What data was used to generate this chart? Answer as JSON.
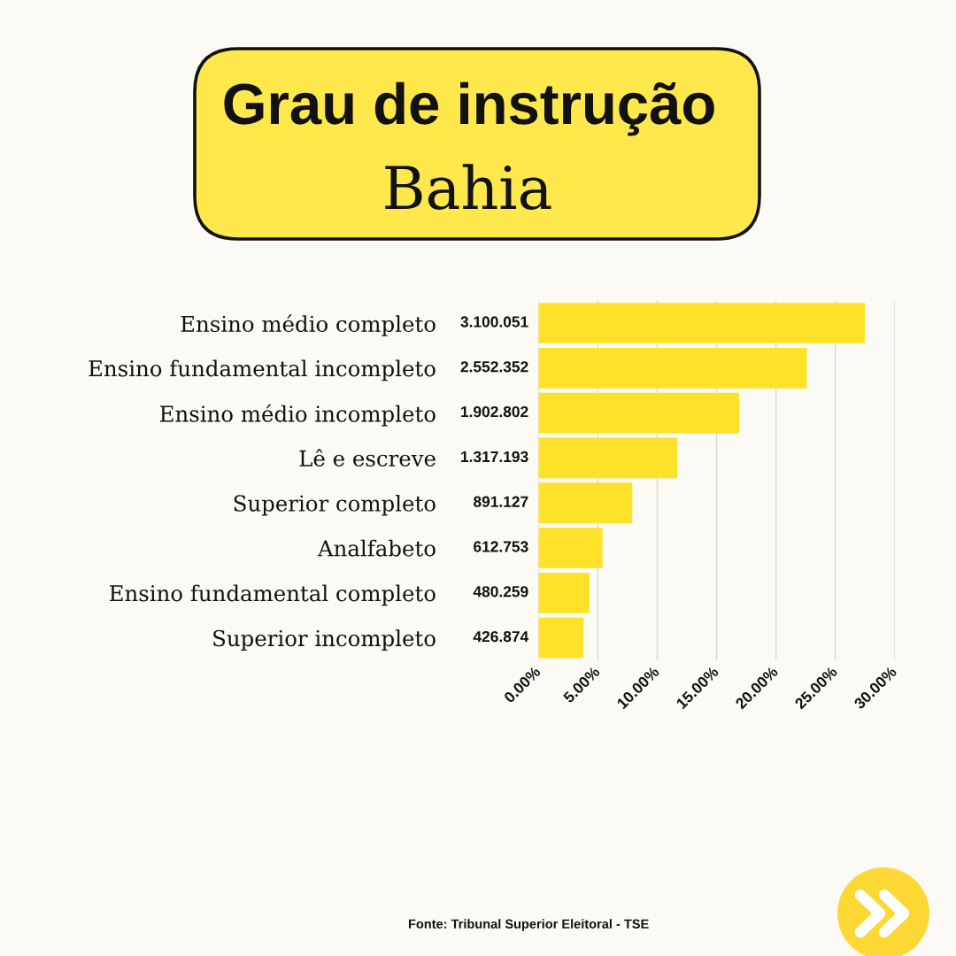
{
  "chart_data": {
    "type": "bar",
    "orientation": "horizontal",
    "title": "Grau de instrução",
    "subtitle": "Bahia",
    "categories": [
      "Ensino médio completo",
      "Ensino fundamental incompleto",
      "Ensino médio incompleto",
      "Lê e escreve",
      "Superior completo",
      "Analfabeto",
      "Ensino fundamental completo",
      "Superior incompleto"
    ],
    "values": [
      27.5,
      22.6,
      16.9,
      11.7,
      7.9,
      5.4,
      4.3,
      3.8
    ],
    "color": "#fee22a",
    "xlim": [
      0,
      30
    ],
    "xticks": [
      {
        "value": 0,
        "label": "0.00%"
      },
      {
        "value": 5,
        "label": "5.00%"
      },
      {
        "value": 10,
        "label": "10.00%"
      },
      {
        "value": 15,
        "label": "15.00%"
      },
      {
        "value": 20,
        "label": "20.00%"
      },
      {
        "value": 25,
        "label": "25.00%"
      },
      {
        "value": 30,
        "label": "30.00%"
      }
    ],
    "grid": "x",
    "annotations": [
      "3.100.051",
      "2.552.352",
      "1.902.802",
      "1.317.193",
      "891.127",
      "612.753",
      "480.259",
      "426.874",
      "Fonte: Tribunal Superior Eleitoral - TSE"
    ]
  }
}
